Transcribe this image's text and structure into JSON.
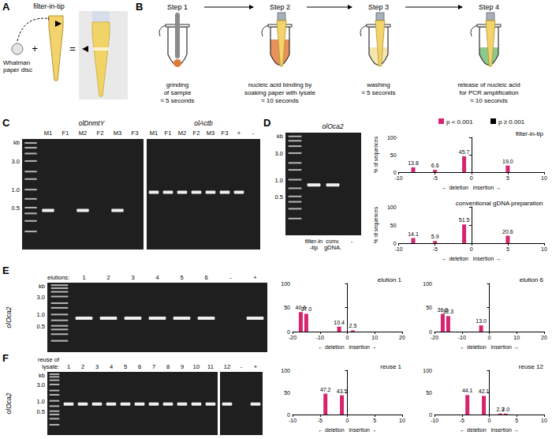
{
  "panel_labels": [
    "A",
    "B",
    "C",
    "D",
    "E",
    "F"
  ],
  "panel_a": {
    "title": "filter-in-tip",
    "disc_label": [
      "Whatman",
      "paper disc"
    ],
    "plus": "+",
    "equals": "="
  },
  "panel_b": {
    "steps": [
      {
        "title": "Step 1",
        "caption": [
          "grinding",
          "of sample",
          "≈ 5 seconds"
        ]
      },
      {
        "title": "Step 2",
        "caption": [
          "nucleic acid binding by",
          "soaking paper with lysate",
          "≈ 10 seconds"
        ]
      },
      {
        "title": "Step 3",
        "caption": [
          "washing",
          "≈ 5 seconds"
        ]
      },
      {
        "title": "Step 4",
        "caption": [
          "release of nucleic acid",
          "for PCR amplification",
          "≈ 10 seconds"
        ]
      }
    ]
  },
  "gels": [
    {
      "header": "olDnmtY",
      "kb_label": "kb",
      "kb_range": [
        0.1,
        7
      ],
      "ladder": [
        6,
        5,
        4,
        3,
        2,
        1.5,
        1,
        0.7,
        0.5,
        0.4,
        0.3,
        0.2
      ],
      "ladder_ticks": [
        {
          "value": 3,
          "label": "3.0"
        },
        {
          "value": 1,
          "label": "1.0"
        },
        {
          "value": 0.5,
          "label": "0.5"
        }
      ],
      "lanes": [
        {
          "label": "M1",
          "band": 0.45
        },
        {
          "label": "F1",
          "band": null
        },
        {
          "label": "M2",
          "band": 0.45
        },
        {
          "label": "F2",
          "band": null
        },
        {
          "label": "M3",
          "band": 0.45
        },
        {
          "label": "F3",
          "band": null
        }
      ]
    },
    {
      "header": "olActb",
      "kb_range": [
        0.1,
        7
      ],
      "lanes": [
        {
          "label": "M1",
          "band": 0.9
        },
        {
          "label": "F1",
          "band": 0.9
        },
        {
          "label": "M2",
          "band": 0.9
        },
        {
          "label": "F2",
          "band": 0.9
        },
        {
          "label": "M3",
          "band": 0.9
        },
        {
          "label": "F3",
          "band": 0.9
        },
        {
          "label": "+",
          "band": 0.9
        },
        {
          "label": "-",
          "band": null
        }
      ]
    },
    {
      "header": "olOca2",
      "kb_label": "kb",
      "kb_range": [
        0.1,
        7
      ],
      "ladder": [
        6,
        5,
        4,
        3,
        2,
        1.5,
        1,
        0.7,
        0.5,
        0.4,
        0.3,
        0.2
      ],
      "ladder_ticks": [
        {
          "value": 3,
          "label": "3.0"
        },
        {
          "value": 1,
          "label": "1.0"
        },
        {
          "value": 0.5,
          "label": "0.5"
        }
      ],
      "lanes": [
        {
          "label": [
            "filter-in",
            "-tip"
          ],
          "band": 0.8
        },
        {
          "label": [
            "conv.",
            "gDNA."
          ],
          "band": 0.8
        },
        {
          "label": "-",
          "band": null
        }
      ]
    },
    {
      "side_label": "olOca2",
      "lane_header": [
        "elutions:"
      ],
      "kb_label": "kb",
      "kb_range": [
        0.1,
        7
      ],
      "ladder": [
        6,
        5,
        4,
        3,
        2,
        1.5,
        1,
        0.7,
        0.5,
        0.4,
        0.3,
        0.2
      ],
      "ladder_ticks": [
        {
          "value": 3,
          "label": "3.0"
        },
        {
          "value": 1,
          "label": "1.0"
        },
        {
          "value": 0.5,
          "label": "0.5"
        }
      ],
      "lanes": [
        {
          "label": "1",
          "band": 0.8
        },
        {
          "label": "2",
          "band": 0.8
        },
        {
          "label": "3",
          "band": 0.8
        },
        {
          "label": "4",
          "band": 0.8
        },
        {
          "label": "5",
          "band": 0.8
        },
        {
          "label": "6",
          "band": 0.8
        },
        {
          "label": "-",
          "band": null
        },
        {
          "label": "+",
          "band": 0.8
        }
      ]
    },
    {
      "side_label": "olOca2",
      "lane_header": [
        "reuse of",
        "lysate:"
      ],
      "kb_label": "kb",
      "kb_range": [
        0.1,
        7
      ],
      "ladder": [
        6,
        5,
        4,
        3,
        2,
        1.5,
        1,
        0.7,
        0.5,
        0.4,
        0.3,
        0.2
      ],
      "ladder_ticks": [
        {
          "value": 3,
          "label": "3.0"
        },
        {
          "value": 1,
          "label": "1.0"
        },
        {
          "value": 0.5,
          "label": "0.5"
        }
      ],
      "lanes": [
        {
          "label": "1",
          "band": 0.8
        },
        {
          "label": "2",
          "band": 0.8
        },
        {
          "label": "3",
          "band": 0.8
        },
        {
          "label": "4",
          "band": 0.8
        },
        {
          "label": "5",
          "band": 0.8
        },
        {
          "label": "6",
          "band": 0.8
        },
        {
          "label": "7",
          "band": 0.8
        },
        {
          "label": "8",
          "band": 0.8
        },
        {
          "label": "9",
          "band": 0.8
        },
        {
          "label": "10",
          "band": 0.8
        },
        {
          "label": "11",
          "band": 0.8
        }
      ]
    },
    {
      "kb_range": [
        0.1,
        7
      ],
      "lanes": [
        {
          "label": "12",
          "band": 0.8
        },
        {
          "label": "-",
          "band": null
        },
        {
          "label": "+",
          "band": 0.8
        }
      ]
    }
  ],
  "significance_legend": [
    {
      "label": "p < 0.001",
      "color": "#d6246e"
    },
    {
      "label": "p ≥ 0.001",
      "color": "#000000"
    }
  ],
  "chart_data": [
    {
      "type": "bar",
      "title": "filter-in-tip",
      "y_label": "% of sequences",
      "x_label": "← deletion   insertion →",
      "x": [
        -8,
        -5,
        -1,
        5
      ],
      "values": [
        13.8,
        6.6,
        45.7,
        19.0
      ],
      "value_labels": [
        "13.8",
        "6.6",
        "45.7",
        "19.0"
      ],
      "xlim": [
        -10,
        10
      ],
      "xticks": [
        -10,
        -5,
        0,
        5,
        10
      ],
      "ylim": [
        0,
        100
      ],
      "yticks": [
        0,
        50,
        100
      ],
      "color": "#d6246e",
      "data_labels": true
    },
    {
      "type": "bar",
      "title": "conventional gDNA preparation",
      "y_label": "% of sequences",
      "x_label": "← deletion   insertion →",
      "x": [
        -8,
        -5,
        -1,
        5
      ],
      "values": [
        14.1,
        5.9,
        51.5,
        20.6
      ],
      "value_labels": [
        "14.1",
        "5.9",
        "51.5",
        "20.6"
      ],
      "xlim": [
        -10,
        10
      ],
      "xticks": [
        -10,
        -5,
        0,
        5,
        10
      ],
      "ylim": [
        0,
        100
      ],
      "yticks": [
        0,
        50,
        100
      ],
      "color": "#d6246e",
      "data_labels": true
    },
    {
      "type": "bar",
      "title": "elution 1",
      "x_label": "← deletion   insertion →",
      "x": [
        -17,
        -15,
        -3,
        2
      ],
      "values": [
        40.6,
        37.0,
        10.4,
        2.5
      ],
      "value_labels": [
        "40.6",
        "37.0",
        "10.4",
        "2.5"
      ],
      "xlim": [
        -20,
        20
      ],
      "xticks": [
        -20,
        -10,
        0,
        10,
        20
      ],
      "ylim": [
        0,
        100
      ],
      "yticks": [
        0,
        50,
        100
      ],
      "color": "#d6246e",
      "data_labels": true
    },
    {
      "type": "bar",
      "title": "elution 6",
      "x_label": "← deletion   insertion →",
      "x": [
        -17,
        -15,
        -3
      ],
      "values": [
        36.8,
        32.3,
        13.0
      ],
      "value_labels": [
        "36.8",
        "32.3",
        "13.0"
      ],
      "xlim": [
        -20,
        20
      ],
      "xticks": [
        -20,
        -10,
        0,
        10,
        20
      ],
      "ylim": [
        0,
        100
      ],
      "yticks": [
        0,
        50,
        100
      ],
      "color": "#d6246e",
      "data_labels": true
    },
    {
      "type": "bar",
      "title": "reuse 1",
      "x_label": "← deletion   insertion →",
      "x": [
        -4,
        -1
      ],
      "values": [
        47.2,
        43.5
      ],
      "value_labels": [
        "47.2",
        "43.5"
      ],
      "xlim": [
        -10,
        10
      ],
      "xticks": [
        -10,
        -5,
        0,
        5,
        10
      ],
      "ylim": [
        0,
        100
      ],
      "yticks": [
        0,
        50,
        100
      ],
      "color": "#d6246e",
      "data_labels": true
    },
    {
      "type": "bar",
      "title": "reuse 12",
      "x_label": "← deletion   insertion →",
      "x": [
        -4,
        -1,
        2,
        3
      ],
      "values": [
        44.1,
        42.1,
        2.3,
        2.0
      ],
      "value_labels": [
        "44.1",
        "42.1",
        "2.3",
        "2.0"
      ],
      "xlim": [
        -10,
        10
      ],
      "xticks": [
        -10,
        -5,
        0,
        5,
        10
      ],
      "ylim": [
        0,
        100
      ],
      "yticks": [
        0,
        50,
        100
      ],
      "color": "#d6246e",
      "data_labels": true
    }
  ]
}
